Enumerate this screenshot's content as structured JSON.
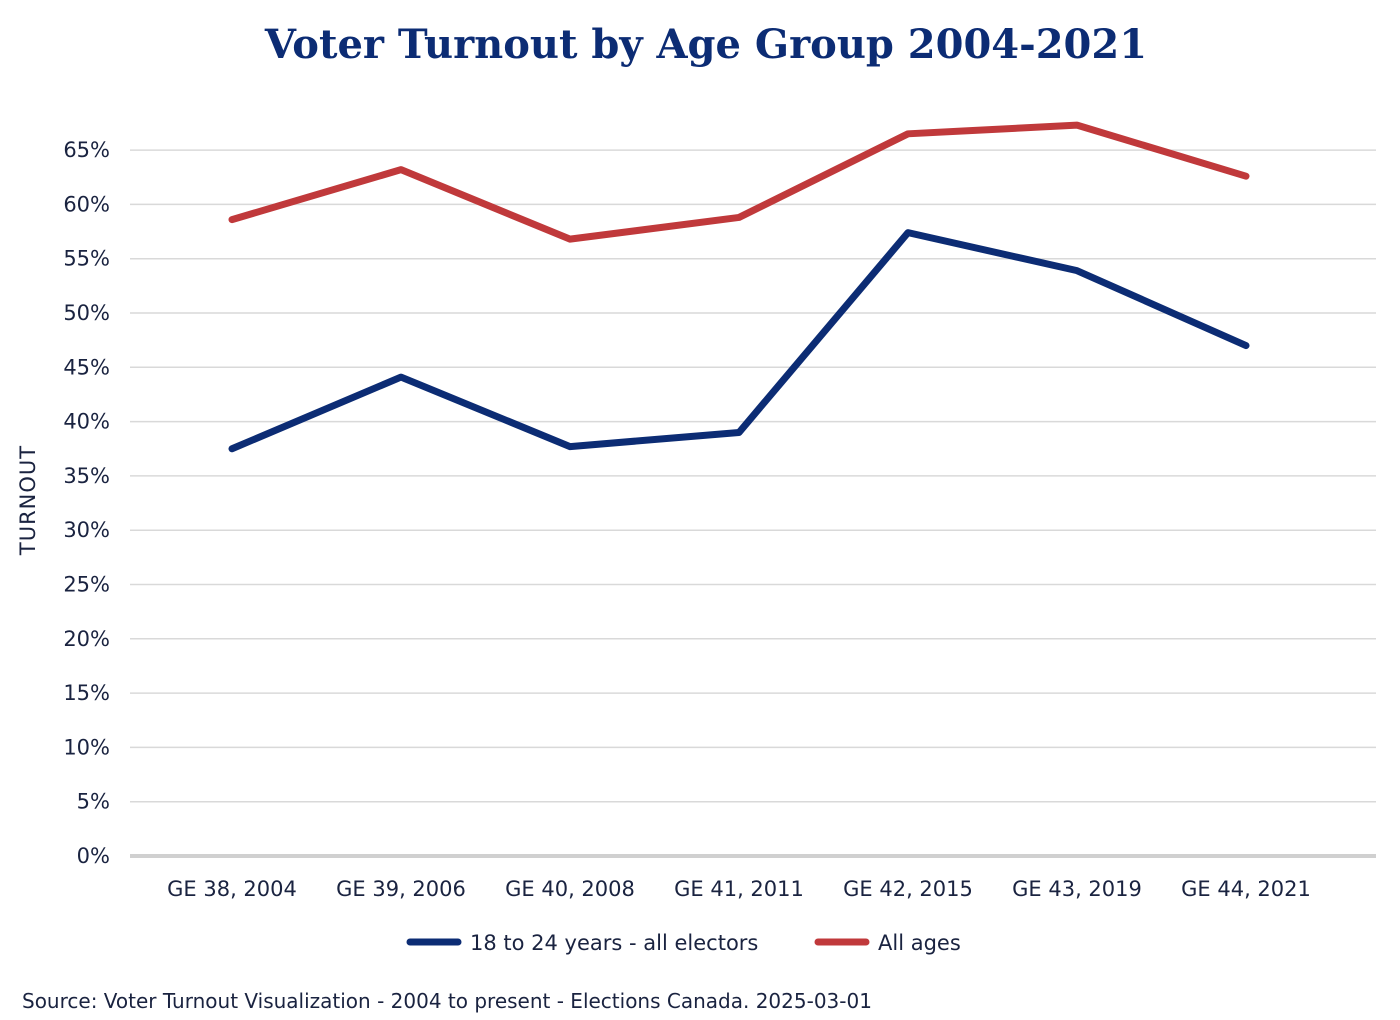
{
  "chart_data": {
    "type": "line",
    "title": "Voter Turnout by Age Group 2004-2021",
    "xlabel": "",
    "ylabel": "TURNOUT",
    "categories": [
      "GE 38, 2004",
      "GE 39, 2006",
      "GE 40, 2008",
      "GE 41, 2011",
      "GE 42, 2015",
      "GE 43, 2019",
      "GE 44, 2021"
    ],
    "series": [
      {
        "name": "18 to 24 years - all electors",
        "color": "#0c2c74",
        "values": [
          37.5,
          44.1,
          37.7,
          39.0,
          57.4,
          53.9,
          47.0
        ]
      },
      {
        "name": "All ages",
        "color": "#c0393b",
        "values": [
          58.6,
          63.2,
          56.8,
          58.8,
          66.5,
          67.3,
          62.6
        ]
      }
    ],
    "ylim": [
      0,
      70
    ],
    "yticks": [
      0,
      5,
      10,
      15,
      20,
      25,
      30,
      35,
      40,
      45,
      50,
      55,
      60,
      65
    ],
    "ytick_labels": [
      "0%",
      "5%",
      "10%",
      "15%",
      "20%",
      "25%",
      "30%",
      "35%",
      "40%",
      "45%",
      "50%",
      "55%",
      "60%",
      "65%"
    ],
    "grid": true,
    "legend_position": "bottom-center",
    "source": "Source: Voter Turnout Visualization - 2004 to present - Elections Canada. 2025-03-01"
  },
  "colors": {
    "title": "#0c2c74",
    "text": "#1a2340",
    "grid": "#d9d9d9",
    "baseline": "#d0d0d0"
  }
}
